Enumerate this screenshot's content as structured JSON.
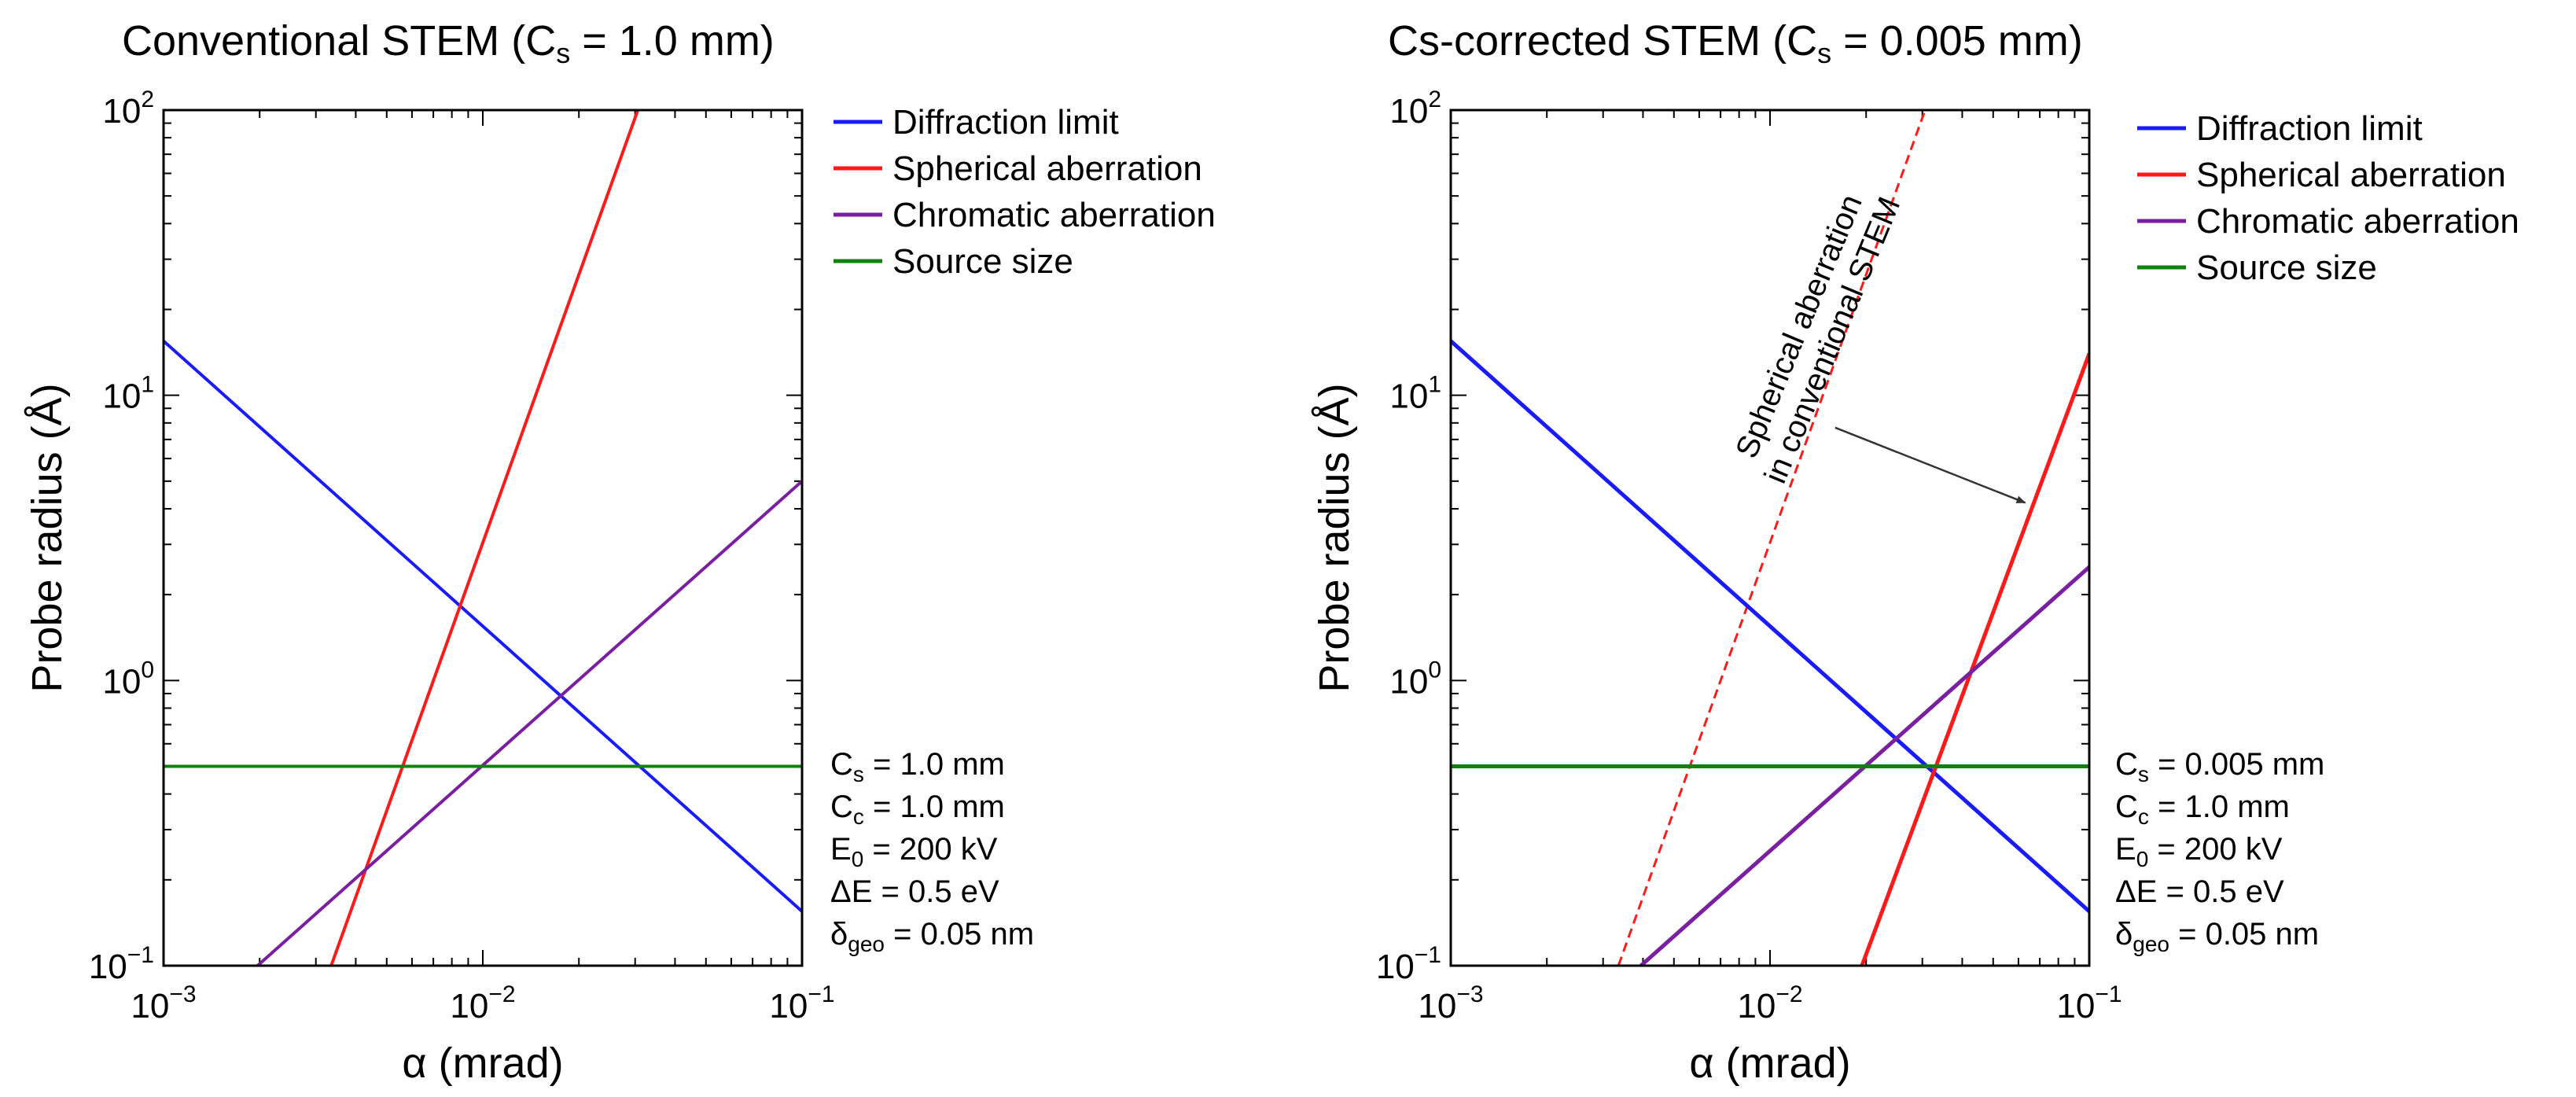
{
  "chart_data": [
    {
      "type": "line",
      "title": "Conventional STEM (C",
      "title_sub": "s",
      "title_tail": " = 1.0 mm)",
      "xlabel": "α (mrad)",
      "ylabel": "Probe radius (Å)",
      "xscale": "log",
      "yscale": "log",
      "xlim": [
        0.001,
        0.1
      ],
      "ylim": [
        0.1,
        100
      ],
      "x_ticks": [
        {
          "base": "10",
          "exp": "−3"
        },
        {
          "base": "10",
          "exp": "−2"
        },
        {
          "base": "10",
          "exp": "−1"
        }
      ],
      "y_ticks": [
        {
          "base": "10",
          "exp": "−1"
        },
        {
          "base": "10",
          "exp": "0"
        },
        {
          "base": "10",
          "exp": "1"
        },
        {
          "base": "10",
          "exp": "2"
        }
      ],
      "legend_position": "outside-right-top",
      "series": [
        {
          "name": "Diffraction limit",
          "color": "#1a1aff",
          "x": [
            0.001,
            0.1
          ],
          "y": [
            15.5,
            0.155
          ]
        },
        {
          "name": "Spherical aberration",
          "color": "#ff1a1a",
          "x": [
            0.00335,
            0.0306
          ],
          "y": [
            0.1,
            100
          ]
        },
        {
          "name": "Chromatic aberration",
          "color": "#7a1fa2",
          "x": [
            0.00197,
            0.1
          ],
          "y": [
            0.1,
            5.0
          ]
        },
        {
          "name": "Source size",
          "color": "#108010",
          "x": [
            0.001,
            0.1
          ],
          "y": [
            0.5,
            0.5
          ]
        }
      ],
      "parameters": [
        {
          "sym": "C",
          "sub": "s",
          "rest": " = 1.0 mm"
        },
        {
          "sym": "C",
          "sub": "c",
          "rest": " = 1.0 mm"
        },
        {
          "sym": "E",
          "sub": "0",
          "rest": " = 200 kV"
        },
        {
          "sym": "ΔE",
          "sub": "",
          "rest": " = 0.5 eV"
        },
        {
          "sym": "δ",
          "sub": "geo",
          "rest": " = 0.05 nm"
        }
      ]
    },
    {
      "type": "line",
      "title": "Cs-corrected STEM (C",
      "title_sub": "s",
      "title_tail": " = 0.005 mm)",
      "xlabel": "α (mrad)",
      "ylabel": "Probe radius (Å)",
      "xscale": "log",
      "yscale": "log",
      "xlim": [
        0.001,
        0.1
      ],
      "ylim": [
        0.1,
        100
      ],
      "x_ticks": [
        {
          "base": "10",
          "exp": "−3"
        },
        {
          "base": "10",
          "exp": "−2"
        },
        {
          "base": "10",
          "exp": "−1"
        }
      ],
      "y_ticks": [
        {
          "base": "10",
          "exp": "−1"
        },
        {
          "base": "10",
          "exp": "0"
        },
        {
          "base": "10",
          "exp": "1"
        },
        {
          "base": "10",
          "exp": "2"
        }
      ],
      "legend_position": "outside-right-top",
      "series": [
        {
          "name": "Diffraction limit",
          "color": "#1a1aff",
          "x": [
            0.001,
            0.1
          ],
          "y": [
            15.5,
            0.155
          ]
        },
        {
          "name": "Spherical aberration",
          "color": "#ff1a1a",
          "x": [
            0.0194,
            0.1
          ],
          "y": [
            0.1,
            14.0
          ]
        },
        {
          "name": "Chromatic aberration",
          "color": "#7a1fa2",
          "x": [
            0.00394,
            0.1
          ],
          "y": [
            0.1,
            2.5
          ]
        },
        {
          "name": "Source size",
          "color": "#108010",
          "x": [
            0.001,
            0.1
          ],
          "y": [
            0.5,
            0.5
          ]
        }
      ],
      "reference_series": {
        "name": "Spherical aberration in conventional STEM",
        "color": "#ff1a1a",
        "dashed": true,
        "x": [
          0.00335,
          0.0306
        ],
        "y": [
          0.1,
          100
        ]
      },
      "annotation": {
        "lines": [
          "Spherical aberration",
          "in conventional STEM"
        ],
        "arrow_from": [
          0.016,
          7.7
        ],
        "arrow_to": [
          0.063,
          4.2
        ]
      },
      "parameters": [
        {
          "sym": "C",
          "sub": "s",
          "rest": " = 0.005 mm"
        },
        {
          "sym": "C",
          "sub": "c",
          "rest": " = 1.0 mm"
        },
        {
          "sym": "E",
          "sub": "0",
          "rest": " = 200 kV"
        },
        {
          "sym": "ΔE",
          "sub": "",
          "rest": " = 0.5 eV"
        },
        {
          "sym": "δ",
          "sub": "geo",
          "rest": " = 0.05 nm"
        }
      ]
    }
  ]
}
